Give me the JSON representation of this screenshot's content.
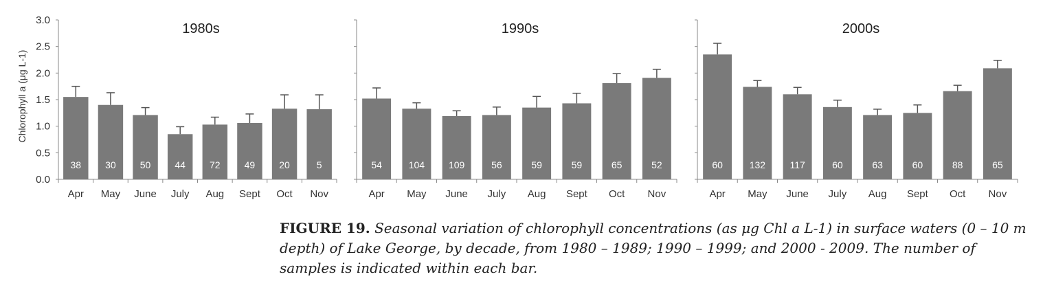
{
  "chart_data": [
    {
      "type": "bar",
      "title": "1980s",
      "ylabel": "Chlorophyll a (μg L-1)",
      "ylim": [
        0,
        3.0
      ],
      "yticks": [
        "0.0",
        "0.5",
        "1.0",
        "1.5",
        "2.0",
        "2.5",
        "3.0"
      ],
      "categories": [
        "Apr",
        "May",
        "June",
        "July",
        "Aug",
        "Sept",
        "Oct",
        "Nov"
      ],
      "values": [
        1.55,
        1.4,
        1.21,
        0.85,
        1.03,
        1.06,
        1.33,
        1.32
      ],
      "error_upper": [
        1.75,
        1.63,
        1.35,
        0.99,
        1.17,
        1.23,
        1.59,
        1.59
      ],
      "sample_counts": [
        "38",
        "30",
        "50",
        "44",
        "72",
        "49",
        "20",
        "5"
      ],
      "color": "#7a7a7a",
      "grid": false
    },
    {
      "type": "bar",
      "title": "1990s",
      "ylim": [
        0,
        3.0
      ],
      "categories": [
        "Apr",
        "May",
        "June",
        "July",
        "Aug",
        "Sept",
        "Oct",
        "Nov"
      ],
      "values": [
        1.52,
        1.33,
        1.19,
        1.21,
        1.35,
        1.43,
        1.81,
        1.91
      ],
      "error_upper": [
        1.72,
        1.44,
        1.29,
        1.36,
        1.56,
        1.62,
        1.99,
        2.07
      ],
      "sample_counts": [
        "54",
        "104",
        "109",
        "56",
        "59",
        "59",
        "65",
        "52"
      ],
      "color": "#7a7a7a",
      "grid": false
    },
    {
      "type": "bar",
      "title": "2000s",
      "ylim": [
        0,
        3.0
      ],
      "categories": [
        "Apr",
        "May",
        "June",
        "July",
        "Aug",
        "Sept",
        "Oct",
        "Nov"
      ],
      "values": [
        2.35,
        1.74,
        1.6,
        1.36,
        1.21,
        1.25,
        1.66,
        2.09
      ],
      "error_upper": [
        2.56,
        1.86,
        1.73,
        1.49,
        1.32,
        1.4,
        1.77,
        2.24
      ],
      "sample_counts": [
        "60",
        "132",
        "117",
        "60",
        "63",
        "60",
        "88",
        "65"
      ],
      "color": "#7a7a7a",
      "grid": false
    }
  ],
  "caption": {
    "label": "FIGURE 19.",
    "text": "Seasonal variation of chlorophyll concentrations (as μg Chl a L-1) in surface waters (0 – 10 m depth) of Lake George, by decade, from 1980 – 1989; 1990 – 1999; and 2000 - 2009. The number of samples is indicated within each bar."
  }
}
